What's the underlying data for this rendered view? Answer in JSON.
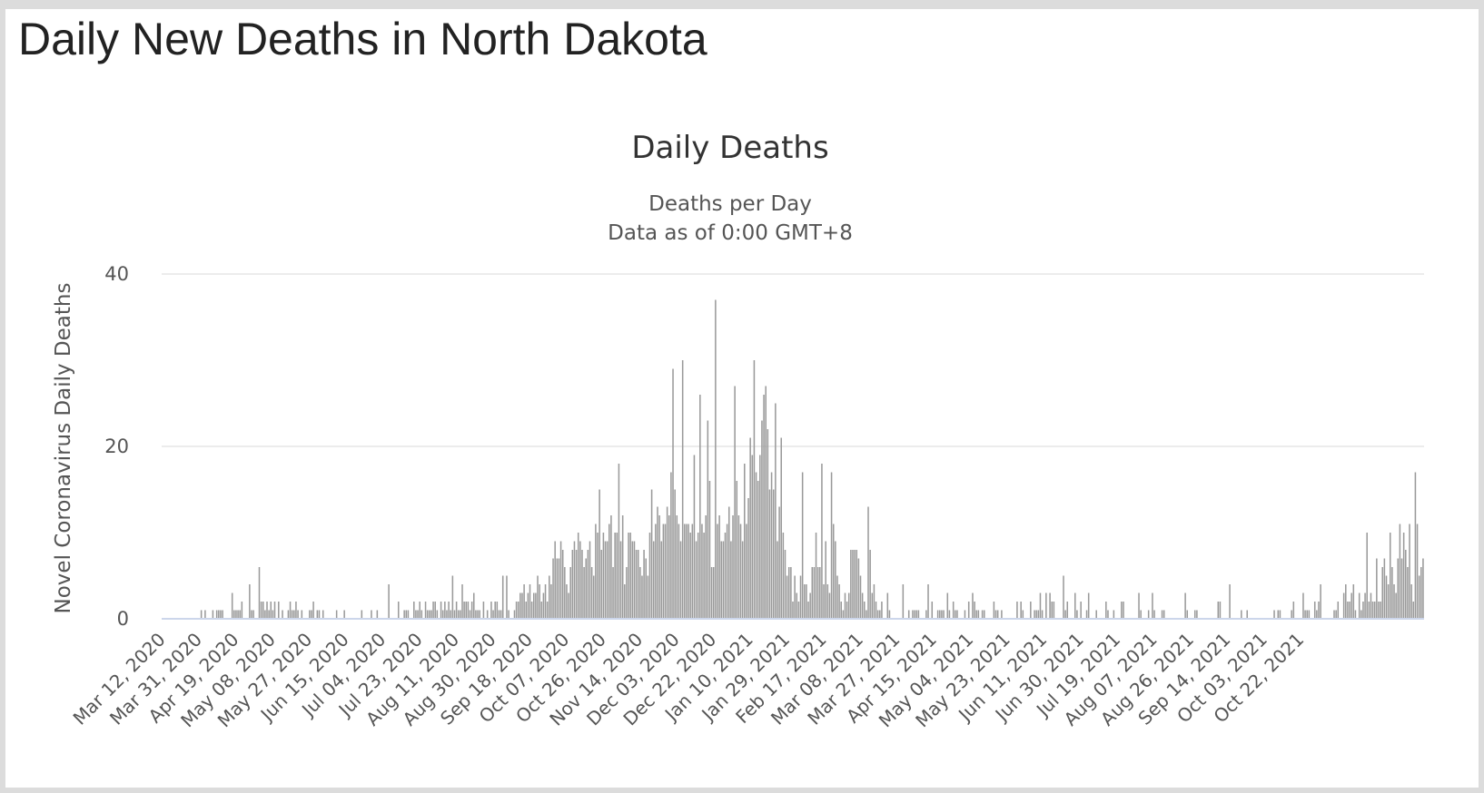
{
  "page": {
    "title": "Daily New Deaths in North Dakota"
  },
  "chart_data": {
    "type": "bar",
    "title": "Daily Deaths",
    "subtitle_lines": [
      "Deaths per Day",
      "Data as of 0:00 GMT+8"
    ],
    "ylabel": "Novel Coronavirus Daily Deaths",
    "xlabel": "",
    "ylim": [
      0,
      40
    ],
    "y_ticks": [
      0,
      20,
      40
    ],
    "grid": true,
    "legend": "none",
    "bar_color": "#999999",
    "x_start_date": "2020-03-12",
    "x_end_date": "2021-10-31",
    "x_tick_labels": [
      "Mar 12, 2020",
      "Mar 31, 2020",
      "Apr 19, 2020",
      "May 08, 2020",
      "May 27, 2020",
      "Jun 15, 2020",
      "Jul 04, 2020",
      "Jul 23, 2020",
      "Aug 11, 2020",
      "Aug 30, 2020",
      "Sep 18, 2020",
      "Oct 07, 2020",
      "Oct 26, 2020",
      "Nov 14, 2020",
      "Dec 03, 2020",
      "Dec 22, 2020",
      "Jan 10, 2021",
      "Jan 29, 2021",
      "Feb 17, 2021",
      "Mar 08, 2021",
      "Mar 27, 2021",
      "Apr 15, 2021",
      "May 04, 2021",
      "May 23, 2021",
      "Jun 11, 2021",
      "Jun 30, 2021",
      "Jul 19, 2021",
      "Aug 07, 2021",
      "Aug 26, 2021",
      "Sep 14, 2021",
      "Oct 03, 2021",
      "Oct 22, 2021"
    ],
    "values": [
      0,
      0,
      0,
      0,
      0,
      0,
      0,
      0,
      0,
      0,
      0,
      0,
      0,
      0,
      0,
      0,
      0,
      0,
      0,
      0,
      1,
      0,
      1,
      0,
      0,
      0,
      1,
      0,
      1,
      1,
      1,
      1,
      0,
      0,
      0,
      0,
      3,
      1,
      1,
      1,
      1,
      2,
      0,
      0,
      0,
      4,
      1,
      1,
      0,
      0,
      6,
      2,
      2,
      1,
      2,
      1,
      2,
      1,
      2,
      0,
      2,
      0,
      1,
      0,
      0,
      1,
      2,
      1,
      1,
      2,
      1,
      0,
      1,
      0,
      0,
      0,
      1,
      1,
      2,
      0,
      1,
      1,
      0,
      1,
      0,
      0,
      0,
      0,
      0,
      0,
      1,
      0,
      0,
      0,
      1,
      0,
      0,
      0,
      0,
      0,
      0,
      0,
      0,
      1,
      0,
      0,
      0,
      0,
      1,
      0,
      0,
      1,
      0,
      0,
      0,
      0,
      0,
      4,
      0,
      0,
      0,
      0,
      2,
      0,
      0,
      1,
      1,
      1,
      0,
      0,
      2,
      1,
      1,
      2,
      1,
      0,
      2,
      1,
      1,
      1,
      2,
      2,
      1,
      0,
      2,
      1,
      2,
      1,
      2,
      1,
      5,
      1,
      2,
      1,
      1,
      4,
      2,
      2,
      2,
      1,
      2,
      3,
      1,
      1,
      1,
      0,
      2,
      0,
      1,
      0,
      2,
      1,
      2,
      2,
      1,
      1,
      5,
      0,
      5,
      1,
      0,
      0,
      1,
      2,
      2,
      3,
      3,
      4,
      2,
      3,
      4,
      2,
      3,
      3,
      5,
      4,
      2,
      3,
      4,
      2,
      5,
      4,
      7,
      9,
      7,
      7,
      9,
      8,
      6,
      4,
      3,
      6,
      8,
      9,
      8,
      10,
      9,
      8,
      6,
      7,
      8,
      9,
      6,
      5,
      11,
      10,
      15,
      8,
      10,
      9,
      9,
      11,
      12,
      6,
      10,
      10,
      18,
      9,
      12,
      4,
      6,
      10,
      10,
      9,
      9,
      8,
      8,
      6,
      5,
      8,
      7,
      5,
      10,
      15,
      9,
      11,
      13,
      12,
      9,
      11,
      11,
      13,
      12,
      17,
      29,
      15,
      12,
      11,
      9,
      30,
      11,
      11,
      11,
      10,
      11,
      19,
      9,
      10,
      26,
      11,
      10,
      12,
      23,
      16,
      6,
      6,
      37,
      11,
      12,
      9,
      9,
      10,
      11,
      13,
      9,
      12,
      27,
      16,
      12,
      11,
      9,
      18,
      11,
      14,
      21,
      19,
      30,
      17,
      16,
      19,
      23,
      26,
      27,
      22,
      15,
      17,
      15,
      25,
      9,
      13,
      21,
      10,
      8,
      5,
      6,
      6,
      2,
      5,
      3,
      2,
      5,
      17,
      4,
      4,
      2,
      3,
      6,
      6,
      10,
      6,
      6,
      18,
      4,
      9,
      4,
      3,
      17,
      11,
      9,
      5,
      4,
      2,
      1,
      3,
      2,
      3,
      8,
      8,
      8,
      8,
      7,
      5,
      3,
      2,
      1,
      13,
      8,
      3,
      4,
      2,
      1,
      1,
      2,
      0,
      0,
      3,
      1,
      0,
      0,
      0,
      0,
      0,
      0,
      4,
      0,
      0,
      1,
      0,
      1,
      1,
      1,
      1,
      0,
      0,
      0,
      1,
      4,
      0,
      2,
      0,
      0,
      1,
      1,
      1,
      1,
      0,
      3,
      1,
      0,
      2,
      1,
      1,
      0,
      0,
      0,
      1,
      0,
      2,
      0,
      3,
      2,
      1,
      1,
      0,
      1,
      1,
      0,
      0,
      0,
      0,
      2,
      1,
      1,
      0,
      1,
      0,
      0,
      0,
      0,
      0,
      0,
      0,
      2,
      0,
      2,
      1,
      0,
      0,
      0,
      2,
      0,
      1,
      1,
      1,
      3,
      1,
      0,
      3,
      0,
      3,
      2,
      2,
      0,
      0,
      0,
      0,
      5,
      1,
      2,
      0,
      0,
      0,
      3,
      1,
      0,
      2,
      0,
      0,
      1,
      3,
      0,
      0,
      0,
      1,
      0,
      0,
      0,
      0,
      2,
      1,
      0,
      0,
      1,
      0,
      0,
      0,
      2,
      2,
      0,
      0,
      0,
      0,
      0,
      0,
      0,
      3,
      1,
      0,
      0,
      0,
      1,
      0,
      3,
      1,
      0,
      0,
      0,
      1,
      1,
      0,
      0,
      0,
      0,
      0,
      0,
      0,
      0,
      0,
      0,
      3,
      1,
      0,
      0,
      0,
      1,
      1,
      0,
      0,
      0,
      0,
      0,
      0,
      0,
      0,
      0,
      0,
      2,
      2,
      0,
      0,
      0,
      0,
      4,
      0,
      0,
      0,
      0,
      0,
      1,
      0,
      0,
      1,
      0,
      0,
      0,
      0,
      0,
      0,
      0,
      0,
      0,
      0,
      0,
      0,
      0,
      1,
      0,
      1,
      1,
      0,
      0,
      0,
      0,
      0,
      1,
      2,
      0,
      0,
      0,
      0,
      3,
      1,
      1,
      1,
      0,
      0,
      2,
      1,
      2,
      4,
      0,
      0,
      0,
      0,
      0,
      0,
      1,
      1,
      2,
      0,
      0,
      3,
      4,
      2,
      2,
      3,
      4,
      1,
      0,
      3,
      1,
      2,
      3,
      10,
      2,
      3,
      2,
      2,
      7,
      2,
      2,
      6,
      7,
      5,
      4,
      10,
      6,
      4,
      3,
      7,
      11,
      7,
      10,
      8,
      6,
      11,
      4,
      2,
      17,
      11,
      5,
      6,
      7
    ]
  }
}
